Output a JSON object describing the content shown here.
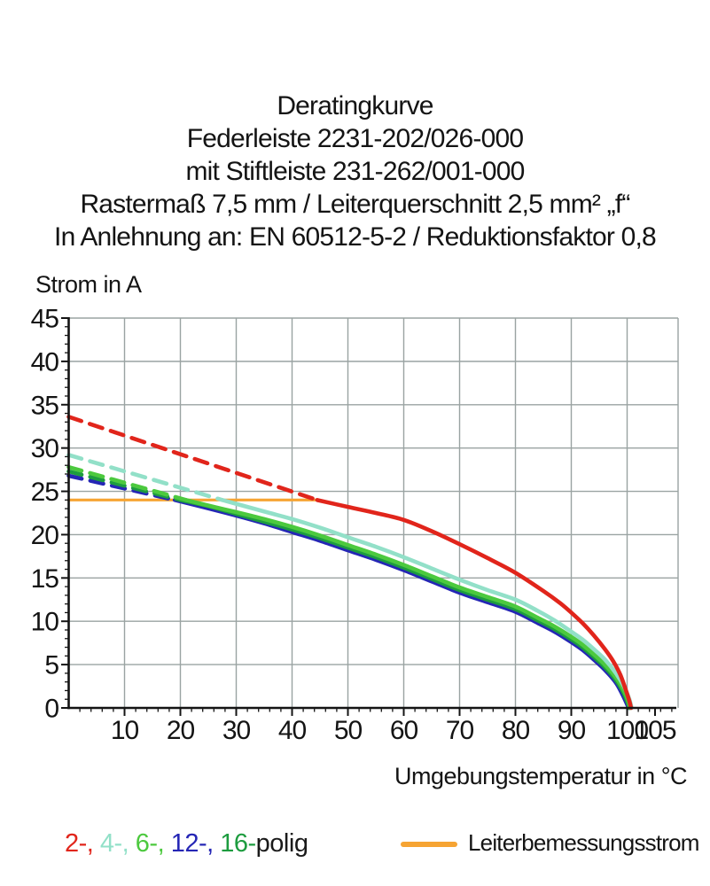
{
  "chart_data": {
    "type": "line",
    "title_lines": [
      "Deratingkurve",
      "Federleiste 2231-202/026-000",
      "mit Stiftleiste 231-262/001-000",
      "Rastermaß 7,5 mm / Leiterquerschnitt 2,5 mm² „f“",
      "In Anlehnung an: EN 60512-5-2 / Reduktionsfaktor 0,8"
    ],
    "xlabel": "Umgebungstemperatur in °C",
    "ylabel": "Strom in A",
    "xlim": [
      0,
      108.5
    ],
    "ylim": [
      0,
      45
    ],
    "x_major_ticks": [
      10,
      20,
      30,
      40,
      50,
      60,
      70,
      80,
      90,
      100,
      105
    ],
    "x_gridlines": [
      10,
      20,
      30,
      40,
      50,
      60,
      70,
      80,
      90,
      100
    ],
    "x_minor_step": 2,
    "y_major_ticks": [
      0,
      5,
      10,
      15,
      20,
      25,
      30,
      35,
      40,
      45
    ],
    "y_minor_step": 1,
    "grid": true,
    "grid_color": "#9aa3a2",
    "axis_color": "#141414",
    "rated_current_a": 24,
    "series": [
      {
        "name": "Leiterbemessungsstrom",
        "color": "#f6a433",
        "width": 3.2,
        "style": "solid-only",
        "solid": [
          [
            0,
            24
          ],
          [
            44.5,
            24
          ]
        ]
      },
      {
        "name": "12-polig",
        "color": "#2526b5",
        "width": 4.6,
        "dashed": [
          [
            0,
            26.8
          ],
          [
            19,
            24
          ]
        ],
        "solid": [
          [
            19,
            24
          ],
          [
            24,
            23.2
          ],
          [
            30,
            22.2
          ],
          [
            35,
            21.3
          ],
          [
            40,
            20.3
          ],
          [
            45,
            19.3
          ],
          [
            50,
            18.2
          ],
          [
            55,
            17.1
          ],
          [
            60,
            15.9
          ],
          [
            65,
            14.6
          ],
          [
            70,
            13.3
          ],
          [
            75,
            12.2
          ],
          [
            80,
            11.1
          ],
          [
            84,
            9.8
          ],
          [
            87,
            8.8
          ],
          [
            90,
            7.6
          ],
          [
            92,
            6.7
          ],
          [
            94,
            5.6
          ],
          [
            96,
            4.4
          ],
          [
            98,
            2.9
          ],
          [
            99.2,
            1.5
          ],
          [
            100,
            0.4
          ],
          [
            100.3,
            0
          ]
        ]
      },
      {
        "name": "16-polig",
        "color": "#1d9c3f",
        "width": 4.6,
        "dashed": [
          [
            0,
            27.3
          ],
          [
            20,
            24
          ]
        ],
        "solid": [
          [
            20,
            24
          ],
          [
            25,
            23.3
          ],
          [
            30,
            22.4
          ],
          [
            35,
            21.5
          ],
          [
            40,
            20.6
          ],
          [
            45,
            19.6
          ],
          [
            50,
            18.5
          ],
          [
            55,
            17.4
          ],
          [
            60,
            16.2
          ],
          [
            65,
            14.9
          ],
          [
            70,
            13.6
          ],
          [
            75,
            12.5
          ],
          [
            80,
            11.4
          ],
          [
            84,
            10.1
          ],
          [
            87,
            9.1
          ],
          [
            90,
            7.9
          ],
          [
            92,
            7.0
          ],
          [
            94,
            5.9
          ],
          [
            96,
            4.7
          ],
          [
            98,
            3.2
          ],
          [
            99.3,
            1.8
          ],
          [
            100.1,
            0.6
          ],
          [
            100.4,
            0
          ]
        ]
      },
      {
        "name": "6-polig",
        "color": "#4cc93e",
        "width": 4.6,
        "dashed": [
          [
            0,
            27.8
          ],
          [
            21,
            24
          ]
        ],
        "solid": [
          [
            21,
            24
          ],
          [
            26,
            23.2
          ],
          [
            30,
            22.6
          ],
          [
            35,
            21.8
          ],
          [
            40,
            20.9
          ],
          [
            45,
            19.9
          ],
          [
            50,
            18.8
          ],
          [
            55,
            17.7
          ],
          [
            60,
            16.5
          ],
          [
            65,
            15.2
          ],
          [
            70,
            13.9
          ],
          [
            75,
            12.8
          ],
          [
            80,
            11.7
          ],
          [
            84,
            10.4
          ],
          [
            87,
            9.4
          ],
          [
            90,
            8.2
          ],
          [
            92,
            7.3
          ],
          [
            94,
            6.2
          ],
          [
            96,
            5.0
          ],
          [
            98,
            3.5
          ],
          [
            99.4,
            2.0
          ],
          [
            100.2,
            0.8
          ],
          [
            100.5,
            0
          ]
        ]
      },
      {
        "name": "4-polig",
        "color": "#92e0c8",
        "width": 4.6,
        "dashed": [
          [
            0,
            29.2
          ],
          [
            27.5,
            24
          ]
        ],
        "solid": [
          [
            27.5,
            24
          ],
          [
            32,
            23.2
          ],
          [
            36,
            22.5
          ],
          [
            40,
            21.8
          ],
          [
            45,
            20.8
          ],
          [
            50,
            19.7
          ],
          [
            55,
            18.6
          ],
          [
            60,
            17.4
          ],
          [
            65,
            16.1
          ],
          [
            70,
            14.8
          ],
          [
            75,
            13.6
          ],
          [
            80,
            12.5
          ],
          [
            84,
            11.2
          ],
          [
            87,
            10.1
          ],
          [
            90,
            8.8
          ],
          [
            92,
            7.9
          ],
          [
            94,
            6.8
          ],
          [
            96,
            5.6
          ],
          [
            98,
            4.0
          ],
          [
            99.5,
            2.4
          ],
          [
            100.4,
            1.0
          ],
          [
            100.8,
            0
          ]
        ]
      },
      {
        "name": "2-polig",
        "color": "#e1251b",
        "width": 4.6,
        "dashed": [
          [
            0,
            33.6
          ],
          [
            44.5,
            24
          ]
        ],
        "solid": [
          [
            44.5,
            24
          ],
          [
            50,
            23.2
          ],
          [
            55,
            22.5
          ],
          [
            60,
            21.7
          ],
          [
            65,
            20.4
          ],
          [
            70,
            18.9
          ],
          [
            75,
            17.3
          ],
          [
            80,
            15.6
          ],
          [
            85,
            13.5
          ],
          [
            88,
            12.1
          ],
          [
            90,
            11.0
          ],
          [
            92,
            9.8
          ],
          [
            94,
            8.4
          ],
          [
            96,
            6.8
          ],
          [
            97.5,
            5.4
          ],
          [
            98.8,
            3.8
          ],
          [
            99.8,
            2.0
          ],
          [
            100.4,
            0.8
          ],
          [
            100.7,
            0
          ]
        ]
      }
    ]
  },
  "legend": {
    "poles": {
      "parts": [
        {
          "text": "2-,",
          "color": "#e1251b"
        },
        {
          "text": " 4-,",
          "color": "#92e0c8"
        },
        {
          "text": " 6-,",
          "color": "#4cc93e"
        },
        {
          "text": " 12-,",
          "color": "#2526b5"
        },
        {
          "text": " 16-",
          "color": "#1d9c3f"
        },
        {
          "text": "polig",
          "color": "#1a1a1a"
        }
      ]
    },
    "rated": {
      "label": "Leiterbemessungsstrom",
      "color": "#f6a433"
    }
  }
}
